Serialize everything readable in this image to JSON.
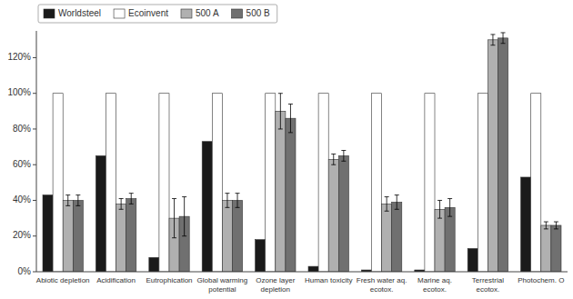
{
  "chart_data": {
    "type": "bar",
    "categories": [
      "Abiotic depletion",
      "Acidification",
      "Eutrophication",
      "Global warming\npotential",
      "Ozone layer\ndepletion",
      "Human toxicity",
      "Fresh water aq.\necotox.",
      "Marine aq.\necotox.",
      "Terrestrial\necotox.",
      "Photochem. O"
    ],
    "series": [
      {
        "name": "Worldsteel",
        "color": "#1a1a1a",
        "values": [
          43,
          65,
          8,
          73,
          18,
          3,
          1,
          1,
          13,
          53
        ]
      },
      {
        "name": "Ecoinvent",
        "color": "#ffffff",
        "values": [
          100,
          100,
          100,
          100,
          100,
          100,
          100,
          100,
          100,
          100
        ]
      },
      {
        "name": "500 A",
        "color": "#b0b0b0",
        "values": [
          40,
          38,
          30,
          40,
          90,
          63,
          38,
          35,
          130,
          26
        ],
        "errors": [
          3,
          3,
          11,
          4,
          10,
          3,
          4,
          5,
          3,
          2
        ]
      },
      {
        "name": "500 B",
        "color": "#707070",
        "values": [
          40,
          41,
          31,
          40,
          86,
          65,
          39,
          36,
          131,
          26
        ],
        "errors": [
          3,
          3,
          11,
          4,
          8,
          3,
          4,
          5,
          3,
          2
        ]
      }
    ],
    "ylim": [
      0,
      135
    ],
    "yticks": [
      {
        "value": 0,
        "label": "0%"
      },
      {
        "value": 20,
        "label": "20%"
      },
      {
        "value": 40,
        "label": "40%"
      },
      {
        "value": 60,
        "label": "60%"
      },
      {
        "value": 80,
        "label": "80%"
      },
      {
        "value": 100,
        "label": "100%"
      },
      {
        "value": 120,
        "label": "120%"
      }
    ],
    "grid": false,
    "legend": "upper left"
  }
}
